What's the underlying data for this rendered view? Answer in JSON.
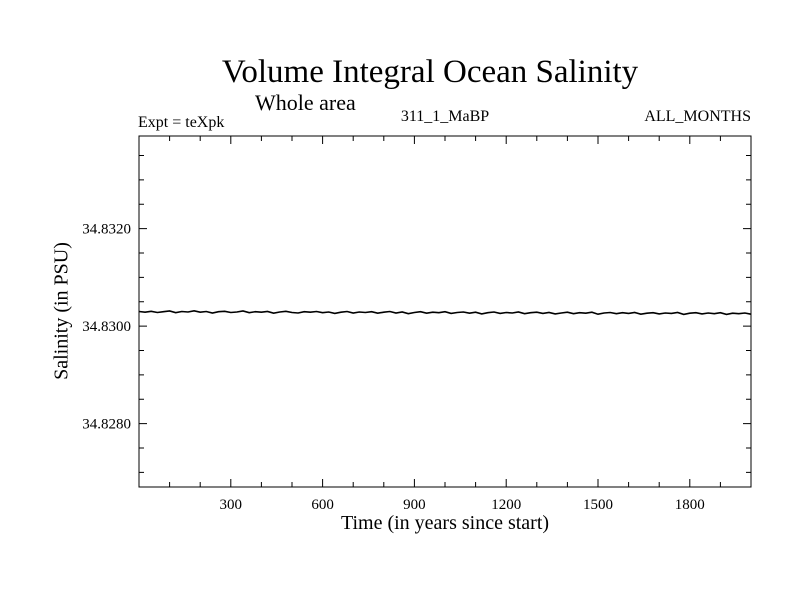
{
  "chart_data": {
    "type": "line",
    "title": "Volume Integral Ocean Salinity",
    "subtitle": "Whole area",
    "annotations": {
      "left": "Expt = teXpk",
      "center": "311_1_MaBP",
      "right": "ALL_MONTHS"
    },
    "xlabel": "Time (in years since start)",
    "ylabel": "Salinity (in PSU)",
    "xlim": [
      0,
      2000
    ],
    "ylim": [
      34.8267,
      34.8339
    ],
    "xticks": [
      300,
      600,
      900,
      1200,
      1500,
      1800
    ],
    "xtick_labels": [
      "300",
      "600",
      "900",
      "1200",
      "1500",
      "1800"
    ],
    "x_minor_step": 100,
    "yticks": [
      34.828,
      34.83,
      34.832
    ],
    "ytick_labels": [
      "34.8280",
      "34.8300",
      "34.8320"
    ],
    "y_minor_step": 0.0005,
    "grid": false,
    "series": [
      {
        "name": "salinity",
        "color": "#000000",
        "x_start": 0,
        "x_step": 20,
        "values": [
          34.8303,
          34.830285,
          34.830305,
          34.83028,
          34.830295,
          34.83031,
          34.830275,
          34.8303,
          34.83029,
          34.830315,
          34.830285,
          34.8303,
          34.83027,
          34.830295,
          34.830305,
          34.83028,
          34.83029,
          34.83031,
          34.830275,
          34.830295,
          34.830285,
          34.8303,
          34.830265,
          34.83029,
          34.830305,
          34.83028,
          34.83027,
          34.830295,
          34.830285,
          34.8303,
          34.830275,
          34.83029,
          34.83026,
          34.830285,
          34.8303,
          34.83027,
          34.83029,
          34.83028,
          34.830295,
          34.830265,
          34.830285,
          34.8303,
          34.83027,
          34.83029,
          34.830255,
          34.83028,
          34.830295,
          34.830265,
          34.830285,
          34.830275,
          34.830295,
          34.83026,
          34.83028,
          34.83029,
          34.830265,
          34.830285,
          34.83025,
          34.830275,
          34.83029,
          34.83026,
          34.83028,
          34.83027,
          34.83029,
          34.830255,
          34.830275,
          34.830285,
          34.83026,
          34.83028,
          34.83025,
          34.83027,
          34.830285,
          34.830255,
          34.830275,
          34.830265,
          34.830285,
          34.830245,
          34.83027,
          34.83028,
          34.830255,
          34.830275,
          34.83026,
          34.83028,
          34.830245,
          34.830265,
          34.830275,
          34.83025,
          34.83027,
          34.83026,
          34.83028,
          34.83024,
          34.830265,
          34.830275,
          34.83025,
          34.83027,
          34.830255,
          34.830275,
          34.83024,
          34.830265,
          34.830255,
          34.83027,
          34.830245
        ]
      }
    ]
  }
}
